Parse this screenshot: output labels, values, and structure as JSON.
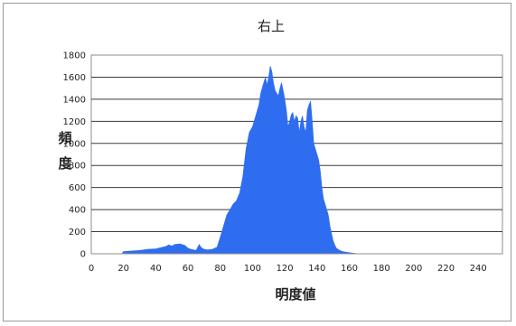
{
  "chart_data": {
    "type": "area",
    "title": "右上",
    "xlabel": "明度値",
    "ylabel": "頻度",
    "xlim": [
      0,
      255
    ],
    "ylim": [
      0,
      1800
    ],
    "x_ticks": [
      0,
      20,
      40,
      60,
      80,
      100,
      120,
      140,
      160,
      180,
      200,
      220,
      240
    ],
    "y_ticks": [
      0,
      200,
      400,
      600,
      800,
      1000,
      1200,
      1400,
      1600,
      1800
    ],
    "grid": "horizontal",
    "legend": "none",
    "color": "#2f6df0",
    "series": [
      {
        "points": [
          [
            19,
            0
          ],
          [
            20,
            20
          ],
          [
            25,
            25
          ],
          [
            30,
            30
          ],
          [
            35,
            40
          ],
          [
            40,
            45
          ],
          [
            43,
            55
          ],
          [
            46,
            65
          ],
          [
            48,
            80
          ],
          [
            50,
            70
          ],
          [
            52,
            85
          ],
          [
            55,
            90
          ],
          [
            58,
            75
          ],
          [
            60,
            50
          ],
          [
            62,
            40
          ],
          [
            65,
            30
          ],
          [
            67,
            85
          ],
          [
            68,
            60
          ],
          [
            70,
            40
          ],
          [
            72,
            35
          ],
          [
            75,
            40
          ],
          [
            78,
            60
          ],
          [
            80,
            150
          ],
          [
            82,
            250
          ],
          [
            84,
            350
          ],
          [
            86,
            400
          ],
          [
            88,
            450
          ],
          [
            90,
            480
          ],
          [
            92,
            550
          ],
          [
            94,
            700
          ],
          [
            96,
            950
          ],
          [
            98,
            1100
          ],
          [
            100,
            1150
          ],
          [
            102,
            1250
          ],
          [
            104,
            1350
          ],
          [
            105,
            1450
          ],
          [
            106,
            1500
          ],
          [
            107,
            1550
          ],
          [
            108,
            1600
          ],
          [
            109,
            1530
          ],
          [
            110,
            1600
          ],
          [
            111,
            1700
          ],
          [
            112,
            1650
          ],
          [
            113,
            1550
          ],
          [
            114,
            1480
          ],
          [
            116,
            1430
          ],
          [
            117,
            1500
          ],
          [
            118,
            1550
          ],
          [
            119,
            1480
          ],
          [
            120,
            1400
          ],
          [
            121,
            1300
          ],
          [
            122,
            1150
          ],
          [
            123,
            1200
          ],
          [
            124,
            1260
          ],
          [
            125,
            1280
          ],
          [
            126,
            1200
          ],
          [
            127,
            1250
          ],
          [
            128,
            1230
          ],
          [
            129,
            1100
          ],
          [
            130,
            1200
          ],
          [
            131,
            1250
          ],
          [
            132,
            1150
          ],
          [
            133,
            1100
          ],
          [
            134,
            1300
          ],
          [
            135,
            1350
          ],
          [
            136,
            1380
          ],
          [
            137,
            1200
          ],
          [
            138,
            1000
          ],
          [
            139,
            950
          ],
          [
            140,
            900
          ],
          [
            141,
            850
          ],
          [
            142,
            750
          ],
          [
            143,
            600
          ],
          [
            144,
            500
          ],
          [
            145,
            450
          ],
          [
            146,
            400
          ],
          [
            147,
            350
          ],
          [
            148,
            250
          ],
          [
            149,
            180
          ],
          [
            150,
            120
          ],
          [
            151,
            80
          ],
          [
            152,
            50
          ],
          [
            154,
            30
          ],
          [
            156,
            20
          ],
          [
            160,
            10
          ],
          [
            163,
            5
          ],
          [
            165,
            0
          ]
        ]
      }
    ]
  }
}
